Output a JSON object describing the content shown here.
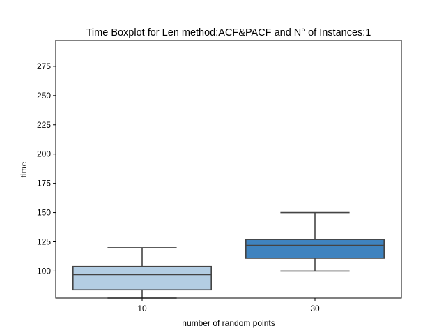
{
  "chart_data": {
    "type": "boxplot",
    "title": "Time Boxplot for Len method:ACF&PACF and N° of Instances:1",
    "xlabel": "number of random points",
    "ylabel": "time",
    "ylim": [
      77,
      297
    ],
    "yticks": [
      100,
      125,
      150,
      175,
      200,
      225,
      250,
      275
    ],
    "grid": false,
    "categories": [
      "10",
      "30"
    ],
    "boxes": [
      {
        "category": "10",
        "whisker_low": 77,
        "q1": 84,
        "median": 97,
        "q3": 104,
        "whisker_high": 120,
        "color": "#b3cde3"
      },
      {
        "category": "30",
        "whisker_low": 100,
        "q1": 111,
        "median": 122,
        "q3": 127,
        "whisker_high": 150,
        "color": "#3f83bf"
      }
    ]
  }
}
